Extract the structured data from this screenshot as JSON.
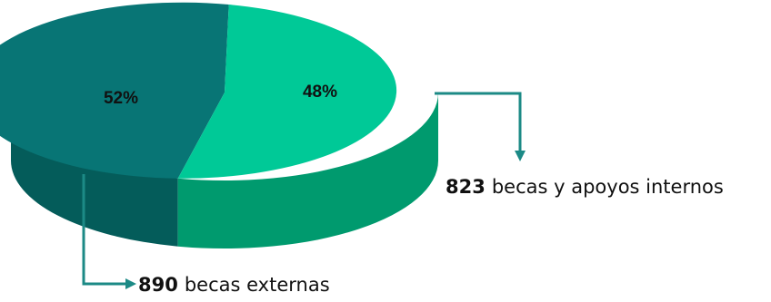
{
  "chart_data": {
    "type": "pie",
    "style": "3d",
    "slices": [
      {
        "percent": 52,
        "label": "52%",
        "annotation_value": "890",
        "annotation_text": "becas externas",
        "color": "#087575",
        "side_color": "#045c5a"
      },
      {
        "percent": 48,
        "label": "48%",
        "annotation_value": "823",
        "annotation_text": "becas y apoyos internos",
        "color": "#00c997",
        "side_color": "#009a6e"
      }
    ],
    "arrow_color": "#1c8a86"
  }
}
